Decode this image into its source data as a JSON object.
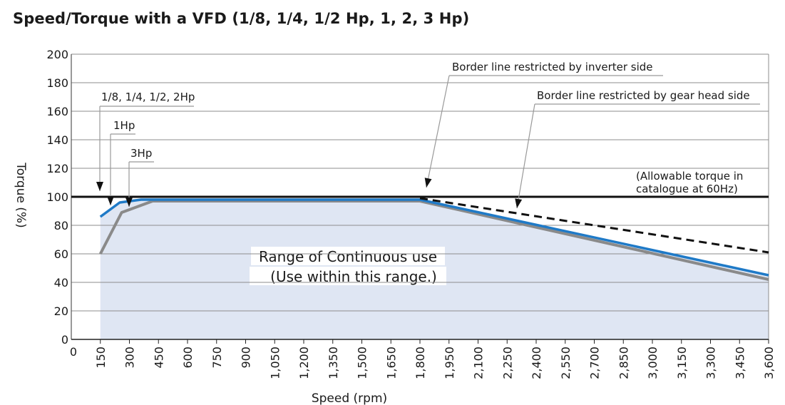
{
  "chart_data": {
    "type": "line",
    "title": "Speed/Torque with a VFD  (1/8, 1/4, 1/2 Hp, 1, 2, 3 Hp)",
    "xlabel": "Speed (rpm)",
    "ylabel": "Torque (%)",
    "xlim": [
      0,
      3600
    ],
    "ylim": [
      0,
      200
    ],
    "x_ticks": [
      150,
      300,
      450,
      600,
      750,
      900,
      1050,
      1200,
      1350,
      1500,
      1650,
      1800,
      1950,
      2100,
      2250,
      2400,
      2550,
      2700,
      2850,
      3000,
      3150,
      3300,
      3450,
      3600
    ],
    "x_tick_labels": [
      "150",
      "300",
      "450",
      "600",
      "750",
      "900",
      "1,050",
      "1,200",
      "1,350",
      "1,500",
      "1,650",
      "1,800",
      "1,950",
      "2,100",
      "2,250",
      "2,400",
      "2,550",
      "2,700",
      "2,850",
      "3,000",
      "3,150",
      "3,300",
      "3,450",
      "3,600"
    ],
    "x_origin_label": "0",
    "y_ticks": [
      0,
      20,
      40,
      60,
      80,
      100,
      120,
      140,
      160,
      180,
      200
    ],
    "grid": true,
    "series": [
      {
        "style": "blue",
        "color": "#1f7ac7",
        "x": [
          150,
          250,
          360,
          1800,
          3600
        ],
        "y": [
          86,
          96,
          98,
          98,
          45
        ]
      },
      {
        "style": "gray",
        "color": "#8a8a8a",
        "x": [
          150,
          260,
          420,
          1800,
          3600
        ],
        "y": [
          60,
          89,
          97,
          97,
          42
        ]
      },
      {
        "style": "dashed",
        "color": "#111111",
        "x": [
          1800,
          3600
        ],
        "y": [
          99,
          61
        ]
      }
    ],
    "reference_line": {
      "y": 100,
      "color": "#111111"
    },
    "region": {
      "label_line1": "Range of Continuous use",
      "label_line2": "(Use within this range.)",
      "color": "#dfe6f3"
    },
    "annotations": {
      "hp_small": "1/8, 1/4, 1/2, 2Hp",
      "hp_1": "1Hp",
      "hp_3": "3Hp",
      "inverter_border": "Border line restricted by inverter side",
      "gear_border": "Border line restricted by gear head side",
      "allowable_line1": "(Allowable torque in",
      "allowable_line2": "catalogue at 60Hz)"
    }
  }
}
